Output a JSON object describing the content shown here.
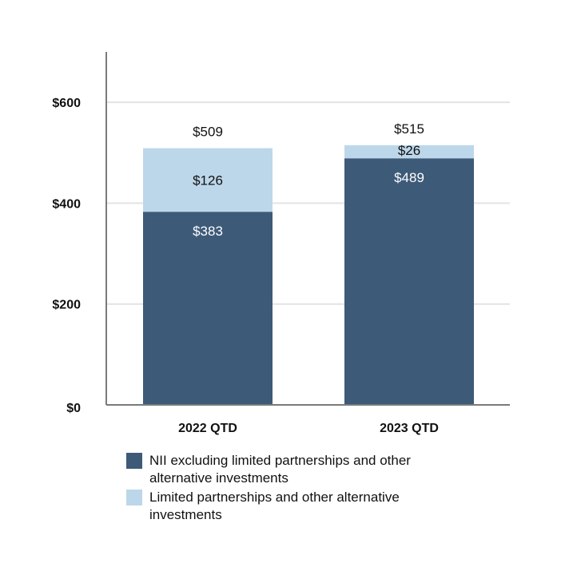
{
  "chart_data": {
    "type": "bar",
    "stacked": true,
    "categories": [
      "2022 QTD",
      "2023 QTD"
    ],
    "series": [
      {
        "name": "NII excluding limited partnerships and other alternative investments",
        "values": [
          383,
          489
        ],
        "labels": [
          "$383",
          "$489"
        ],
        "color": "#3d5a78"
      },
      {
        "name": "Limited partnerships and other alternative investments",
        "values": [
          126,
          26
        ],
        "labels": [
          "$126",
          "$26"
        ],
        "color": "#bdd7ea"
      }
    ],
    "totals": [
      509,
      515
    ],
    "total_labels": [
      "$509",
      "$515"
    ],
    "yticks": [
      0,
      200,
      400,
      600
    ],
    "ytick_labels": [
      "$0",
      "$200",
      "$400",
      "$600"
    ],
    "ylim": [
      0,
      700
    ],
    "grid": true,
    "legend_position": "bottom"
  }
}
